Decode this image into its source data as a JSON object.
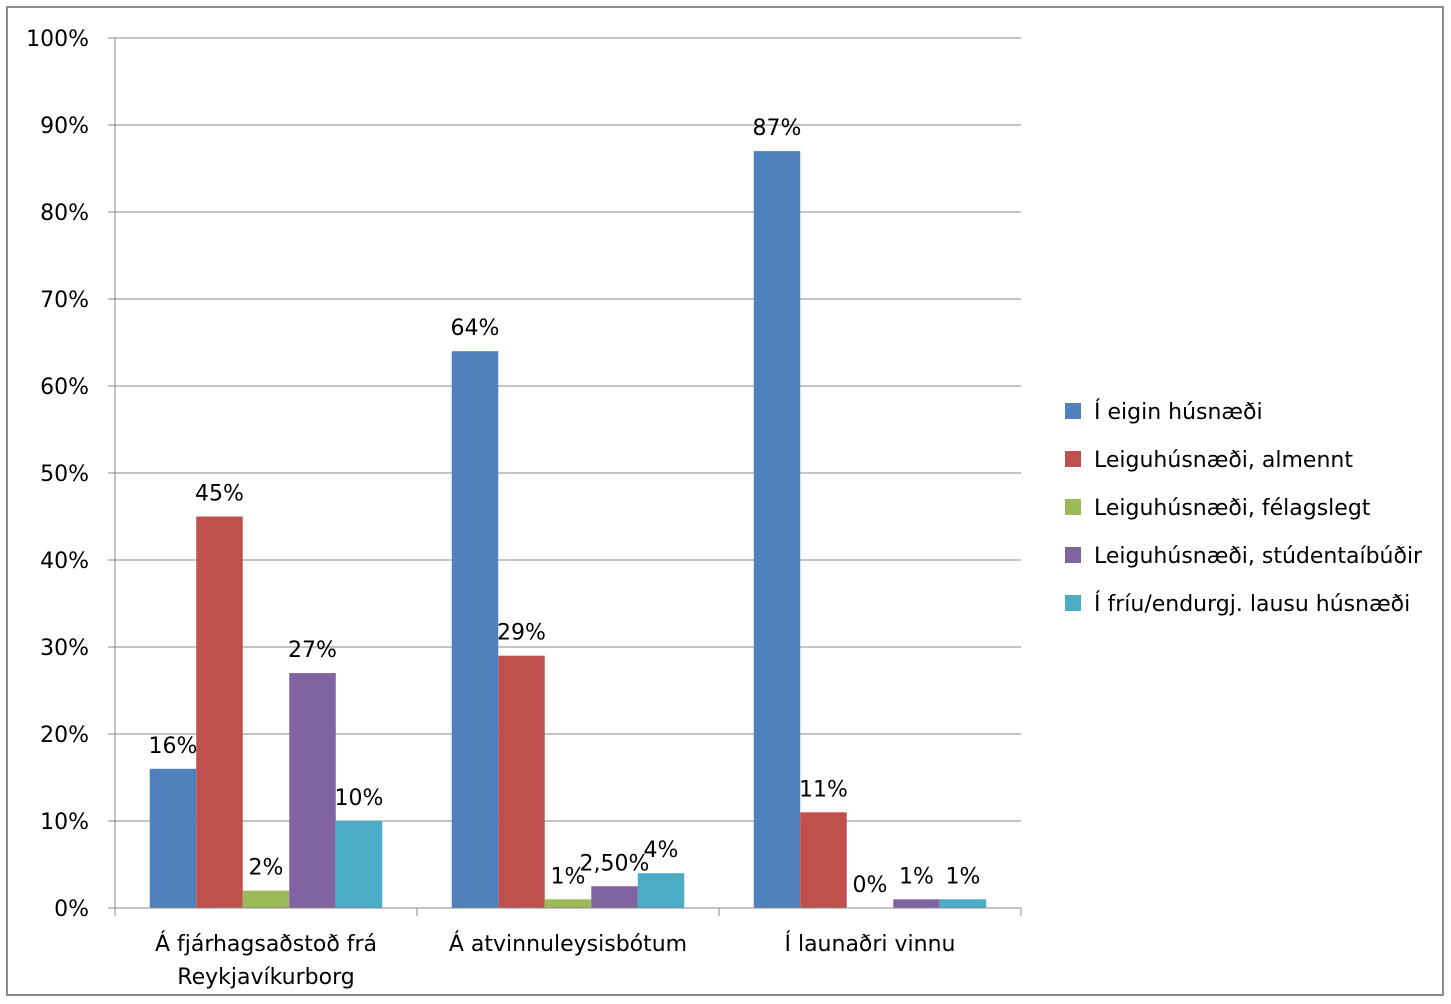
{
  "chart_data": {
    "type": "bar",
    "title": "",
    "xlabel": "",
    "ylabel": "",
    "ylim": [
      0,
      100
    ],
    "y_ticks": [
      "0%",
      "10%",
      "20%",
      "30%",
      "40%",
      "50%",
      "60%",
      "70%",
      "80%",
      "90%",
      "100%"
    ],
    "grid": true,
    "legend_position": "right",
    "categories": [
      [
        "Á fjárhagsaðstoð frá",
        "Reykjavíkurborg"
      ],
      [
        "Á atvinnuleysisbótum"
      ],
      [
        "Í launaðri vinnu"
      ]
    ],
    "series": [
      {
        "name": "Í eigin húsnæði",
        "color": "#4F81BD",
        "values": [
          16,
          64,
          87
        ],
        "labels": [
          "16%",
          "64%",
          "87%"
        ]
      },
      {
        "name": "Leiguhúsnæði, almennt",
        "color": "#C0504D",
        "values": [
          45,
          29,
          11
        ],
        "labels": [
          "45%",
          "29%",
          "11%"
        ]
      },
      {
        "name": "Leiguhúsnæði, félagslegt",
        "color": "#9BBB59",
        "values": [
          2,
          1,
          0
        ],
        "labels": [
          "2%",
          "1%",
          "0%"
        ]
      },
      {
        "name": "Leiguhúsnæði, stúdentaíbúðir",
        "color": "#8064A2",
        "values": [
          27,
          2.5,
          1
        ],
        "labels": [
          "27%",
          "2,50%",
          "1%"
        ]
      },
      {
        "name": "Í fríu/endurgj. lausu húsnæði",
        "color": "#4BACC6",
        "values": [
          10,
          4,
          1
        ],
        "labels": [
          "10%",
          "4%",
          "1%"
        ]
      }
    ]
  }
}
